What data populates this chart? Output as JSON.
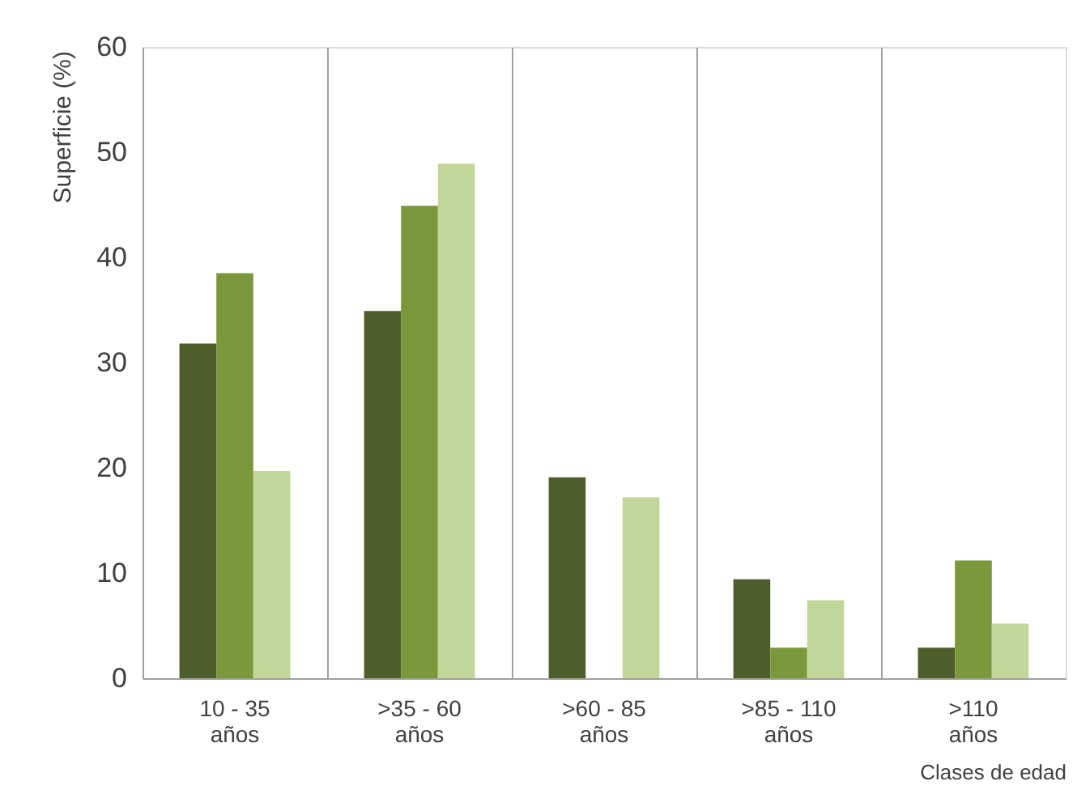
{
  "chart_data": {
    "type": "bar",
    "xlabel": "Clases de edad",
    "ylabel": "Superficie (%)",
    "categories": [
      "10 - 35\naños",
      ">35 - 60\naños",
      ">60 - 85\naños",
      ">85 - 110\naños",
      ">110\naños"
    ],
    "series": [
      {
        "color": "#4d5e2a",
        "values": [
          31.8,
          34.9,
          19.1,
          9.4,
          2.9
        ]
      },
      {
        "color": "#7a973c",
        "values": [
          38.5,
          44.9,
          null,
          2.9,
          11.2
        ]
      },
      {
        "color": "#c2d69a",
        "values": [
          19.7,
          48.9,
          17.2,
          7.4,
          5.2
        ]
      }
    ],
    "ylim": [
      0,
      60
    ],
    "yticks": [
      0,
      10,
      20,
      30,
      40,
      50,
      60
    ],
    "grid": "x",
    "legend": false
  }
}
